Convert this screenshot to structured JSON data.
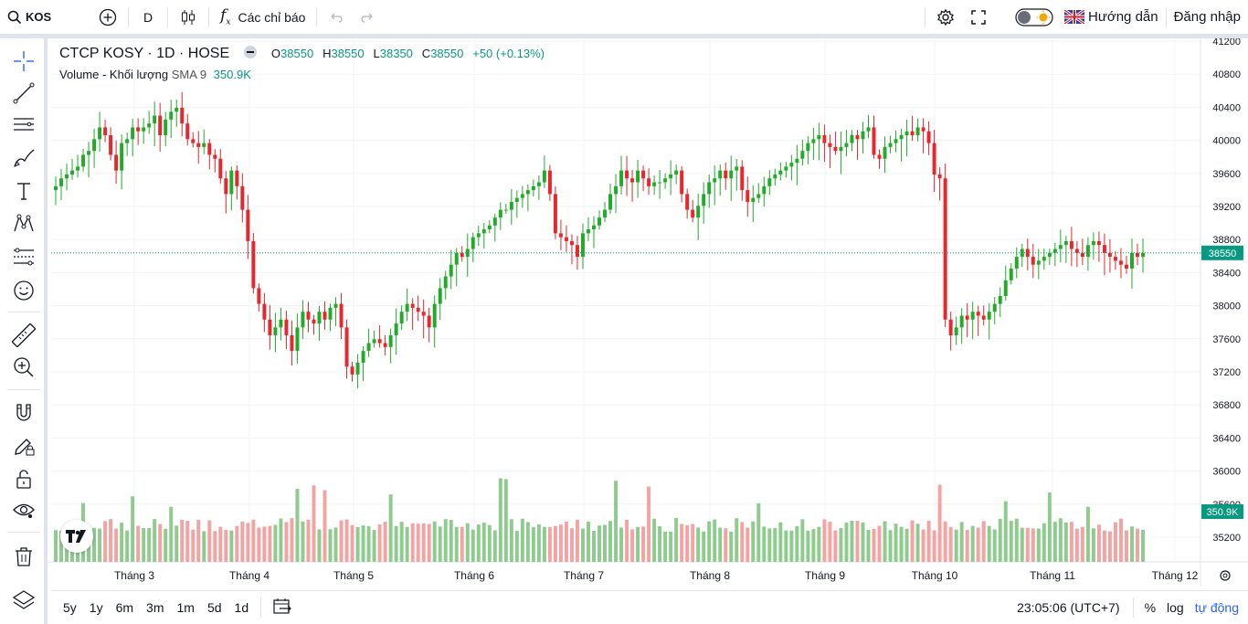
{
  "topbar": {
    "symbol": "KOS",
    "interval": "D",
    "indicators_label": "Các chỉ báo",
    "guide_label": "Hướng dẫn",
    "login_label": "Đăng nhập"
  },
  "legend": {
    "title": "CTCP KOSY · 1D · HOSE",
    "o_label": "O",
    "o_value": "38550",
    "h_label": "H",
    "h_value": "38550",
    "l_label": "L",
    "l_value": "38350",
    "c_label": "C",
    "c_value": "38550",
    "change": "+50 (+0.13%)",
    "volume_label": "Volume - Khối lượng",
    "sma_label": "SMA 9",
    "sma_value": "350.9K"
  },
  "colors": {
    "up": "#089981",
    "down": "#f23645",
    "up_candle": "#22ab2a",
    "down_candle": "#e8262b",
    "up_volume": "#8fcb8f",
    "down_volume": "#f4a3a3"
  },
  "bottombar": {
    "ranges": [
      "5y",
      "1y",
      "6m",
      "3m",
      "1m",
      "5d",
      "1d"
    ],
    "time": "23:05:06 (UTC+7)",
    "percent": "%",
    "log": "log",
    "auto": "tự động"
  },
  "chart_data": {
    "type": "candlestick",
    "price_axis_ticks": [
      "41200",
      "40800",
      "40400",
      "40000",
      "39600",
      "39200",
      "38800",
      "38400",
      "38000",
      "37600",
      "37200",
      "36800",
      "36400",
      "36000",
      "35600",
      "35200"
    ],
    "time_axis_ticks": [
      "Tháng 3",
      "Tháng 4",
      "Tháng 5",
      "Tháng 6",
      "Tháng 7",
      "Tháng 8",
      "Tháng 9",
      "Tháng 10",
      "Tháng 11",
      "Tháng 12"
    ],
    "last_price": "38550",
    "volume_sma_value": "350.9K",
    "y_range": [
      35000,
      41250
    ],
    "candles_close": [
      39400,
      39500,
      39550,
      39600,
      39650,
      39800,
      39850,
      40000,
      40150,
      40050,
      39800,
      39600,
      39950,
      40000,
      40150,
      40100,
      40150,
      40200,
      40300,
      40050,
      40250,
      40350,
      40400,
      40200,
      40000,
      39950,
      39900,
      39950,
      39800,
      39750,
      39500,
      39300,
      39600,
      39400,
      39100,
      38700,
      38100,
      37900,
      37700,
      37500,
      37600,
      37700,
      37500,
      37300,
      37600,
      37800,
      37700,
      37650,
      37800,
      37700,
      37850,
      37900,
      37600,
      37100,
      37000,
      37150,
      37300,
      37400,
      37450,
      37400,
      37350,
      37500,
      37650,
      37800,
      37900,
      37850,
      37800,
      37750,
      37600,
      37900,
      38100,
      38250,
      38400,
      38550,
      38500,
      38600,
      38750,
      38800,
      38850,
      38900,
      39000,
      39100,
      39100,
      39200,
      39250,
      39300,
      39350,
      39400,
      39450,
      39600,
      39300,
      38800,
      38750,
      38700,
      38650,
      38500,
      38800,
      38850,
      38900,
      39000,
      39100,
      39300,
      39400,
      39600,
      39500,
      39450,
      39600,
      39500,
      39400,
      39450,
      39450,
      39500,
      39550,
      39600,
      39300,
      39100,
      39000,
      39150,
      39300,
      39450,
      39500,
      39600,
      39500,
      39600,
      39650,
      39350,
      39200,
      39250,
      39300,
      39400,
      39500,
      39550,
      39600,
      39650,
      39700,
      39750,
      39850,
      39950,
      40000,
      40050,
      39950,
      39900,
      39850,
      39900,
      39950,
      40050,
      40000,
      40100,
      40150,
      39800,
      39750,
      39900,
      39950,
      40000,
      40050,
      40100,
      40050,
      40150,
      40100,
      39950,
      39550,
      39500,
      37700,
      37500,
      37600,
      37750,
      37700,
      37800,
      37750,
      37700,
      37800,
      37900,
      38000,
      38200,
      38350,
      38500,
      38600,
      38500,
      38400,
      38450,
      38500,
      38550,
      38600,
      38650,
      38700,
      38600,
      38550,
      38500,
      38650,
      38700,
      38650,
      38550,
      38500,
      38450,
      38400,
      38350,
      38550,
      38500,
      38550
    ]
  }
}
